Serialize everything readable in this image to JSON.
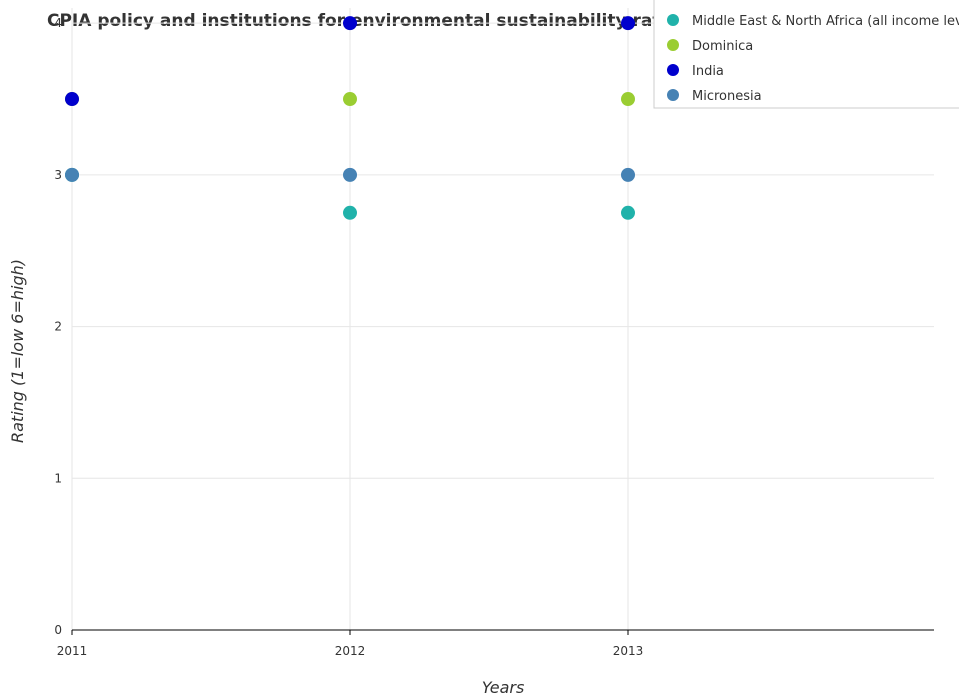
{
  "chart_data": {
    "type": "scatter",
    "title": "CPIA policy and institutions for environmental sustainability rating",
    "xlabel": "Years",
    "ylabel": "Rating (1=low 6=high)",
    "categories": [
      "2011",
      "2012",
      "2013"
    ],
    "y_ticks": [
      "0",
      "1",
      "2",
      "3",
      "4"
    ],
    "ylim": [
      0,
      4.1
    ],
    "grid": true,
    "legend_position": "top-right",
    "series": [
      {
        "name": "Middle East & North Africa (all income levels)",
        "color": "#20b2aa",
        "values": [
          3.0,
          2.75,
          2.75
        ]
      },
      {
        "name": "Dominica",
        "color": "#9acd32",
        "values": [
          3.5,
          3.5,
          3.5
        ]
      },
      {
        "name": "India",
        "color": "#0000cd",
        "values": [
          3.5,
          4.0,
          4.0
        ]
      },
      {
        "name": "Micronesia",
        "color": "#4682b4",
        "values": [
          3.0,
          3.0,
          3.0
        ]
      }
    ]
  }
}
